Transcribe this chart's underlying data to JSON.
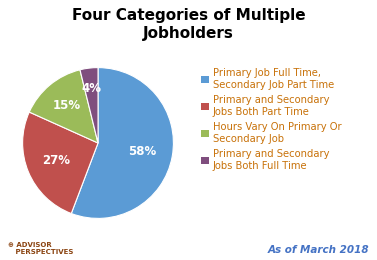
{
  "title": "Four Categories of Multiple\nJobholders",
  "slices": [
    58,
    27,
    15,
    4
  ],
  "colors": [
    "#5b9bd5",
    "#c0504d",
    "#9bbb59",
    "#7f4e7e"
  ],
  "labels": [
    "58%",
    "27%",
    "15%",
    "4%"
  ],
  "legend_labels": [
    "Primary Job Full Time,\nSecondary Job Part Time",
    "Primary and Secondary\nJobs Both Part Time",
    "Hours Vary On Primary Or\nSecondary Job",
    "Primary and Secondary\nJobs Both Full Time"
  ],
  "legend_text_color": "#c8720a",
  "watermark": "As of March 2018",
  "watermark_color": "#4472c4",
  "title_fontsize": 11,
  "label_fontsize": 8.5,
  "legend_fontsize": 7.2,
  "background_color": "#ffffff",
  "startangle": 90,
  "advisor_text": "⊕ ADVISOR\n   PERSPECTIVES",
  "advisor_color": "#8B4513",
  "advisor_fontsize": 5.0
}
